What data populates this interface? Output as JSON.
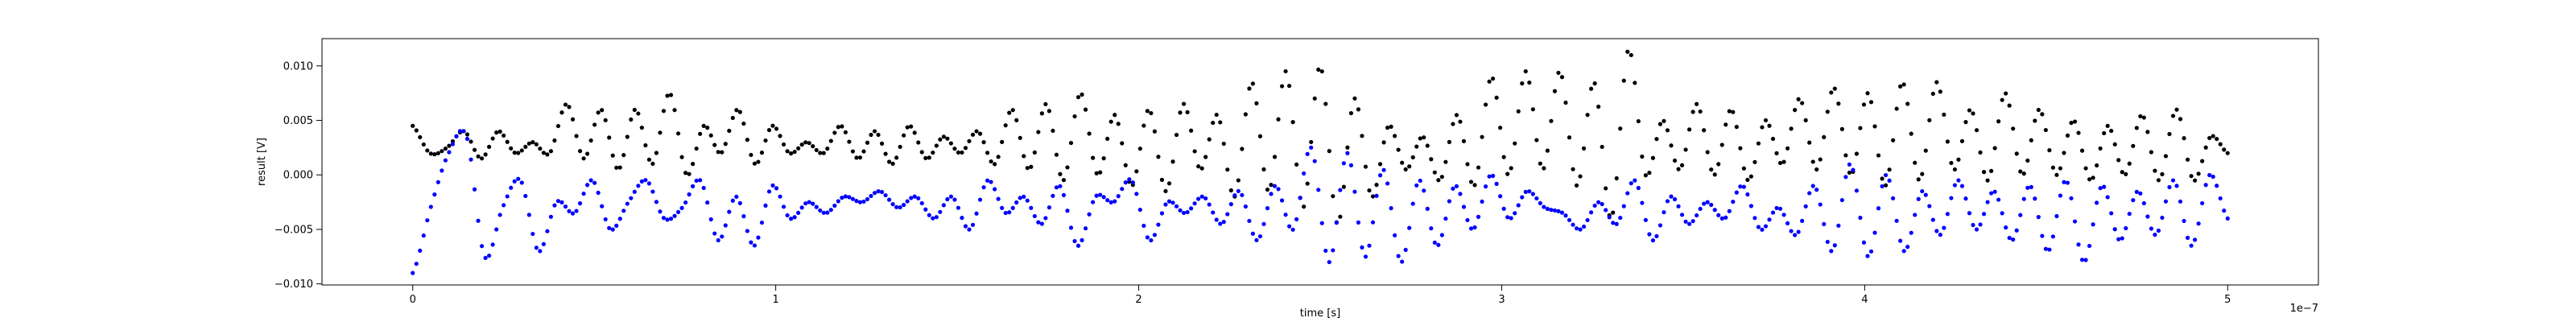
{
  "chart_data": {
    "type": "scatter",
    "xlabel": "time [s]",
    "ylabel": "result [V]",
    "x_offset_label": "1e−7",
    "x_tick_labels": [
      "0",
      "1",
      "2",
      "3",
      "4",
      "5"
    ],
    "x_ticks": [
      0,
      1e-07,
      2e-07,
      3e-07,
      4e-07,
      5e-07
    ],
    "y_tick_labels": [
      "−0.010",
      "−0.005",
      "0.000",
      "0.005",
      "0.010"
    ],
    "y_ticks": [
      -0.01,
      -0.005,
      0.0,
      0.005,
      0.01
    ],
    "xlim": [
      -2.5e-08,
      5.25e-07
    ],
    "ylim": [
      -0.0101,
      0.0125
    ],
    "grid": false,
    "legend": false,
    "marker_colors": {
      "black_series": "#000000",
      "blue_series": "#0000ff"
    },
    "x_range": [
      0,
      5e-07
    ],
    "points_per_series": 500,
    "series": [
      {
        "color": "black",
        "y_control_points": [
          0.0045,
          0.002,
          0.0025,
          0.004,
          0.0015,
          0.004,
          0.002,
          0.003,
          0.002,
          0.0065,
          0.0015,
          0.006,
          0.0005,
          0.006,
          0.001,
          0.0075,
          0.0,
          0.0045,
          0.002,
          0.006,
          0.001,
          0.0045,
          0.002,
          0.003,
          0.002,
          0.0045,
          0.0015,
          0.004,
          0.001,
          0.0045,
          0.0015,
          0.0035,
          0.002,
          0.004,
          0.001,
          0.006,
          0.0005,
          0.0065,
          -0.0005,
          0.0075,
          0.0,
          0.0055,
          -0.001,
          0.006,
          -0.0015,
          0.0065,
          0.0005,
          0.0055,
          -0.002,
          0.0085,
          -0.0015,
          0.0095,
          -0.003,
          0.01,
          -0.0045,
          0.007,
          -0.002,
          0.0045,
          0.0005,
          0.0035,
          -0.0005,
          0.0055,
          -0.001,
          0.009,
          0.0,
          0.0095,
          0.0005,
          0.0095,
          -0.001,
          0.0085,
          -0.004,
          0.0115,
          0.0,
          0.005,
          0.0005,
          0.0065,
          0.0,
          0.006,
          -0.0005,
          0.005,
          0.001,
          0.007,
          0.0005,
          0.008,
          0.0,
          0.0075,
          -0.001,
          0.0085,
          -0.0005,
          0.0085,
          0.0005,
          0.006,
          -0.0005,
          0.0075,
          0.0,
          0.006,
          0.0,
          0.005,
          -0.0005,
          0.0045,
          0.0,
          0.0055,
          -0.0005,
          0.006,
          -0.0005,
          0.0035,
          0.002
        ]
      },
      {
        "color": "blue",
        "y_control_points": [
          -0.009,
          -0.003,
          0.002,
          0.0035,
          -0.0075,
          -0.003,
          -0.0005,
          -0.007,
          -0.0025,
          -0.0035,
          -0.0005,
          -0.005,
          -0.0025,
          -0.0005,
          -0.004,
          -0.003,
          -0.0005,
          -0.006,
          -0.002,
          -0.0065,
          -0.001,
          -0.004,
          -0.0025,
          -0.0035,
          -0.002,
          -0.0025,
          -0.0015,
          -0.003,
          -0.002,
          -0.004,
          -0.002,
          -0.005,
          -0.0005,
          -0.0035,
          -0.002,
          -0.0045,
          -0.001,
          -0.0065,
          -0.002,
          -0.0025,
          -0.0005,
          -0.006,
          -0.0025,
          -0.0035,
          -0.002,
          -0.0045,
          -0.0015,
          -0.006,
          -0.001,
          -0.005,
          0.0025,
          -0.008,
          0.002,
          -0.0075,
          0.0005,
          -0.008,
          -0.0005,
          -0.0065,
          -0.001,
          -0.005,
          0.0,
          -0.004,
          -0.0015,
          -0.003,
          -0.0035,
          -0.005,
          -0.0025,
          -0.0045,
          -0.0005,
          -0.006,
          -0.002,
          -0.0045,
          -0.0025,
          -0.004,
          -0.001,
          -0.005,
          -0.003,
          -0.0055,
          -0.001,
          -0.007,
          0.001,
          -0.0075,
          0.0,
          -0.007,
          -0.0015,
          -0.0055,
          -0.0005,
          -0.005,
          -0.0015,
          -0.006,
          -0.001,
          -0.007,
          -0.0005,
          -0.008,
          -0.001,
          -0.006,
          -0.0015,
          -0.0055,
          -0.0005,
          -0.0065,
          0.0,
          -0.004
        ]
      }
    ]
  }
}
